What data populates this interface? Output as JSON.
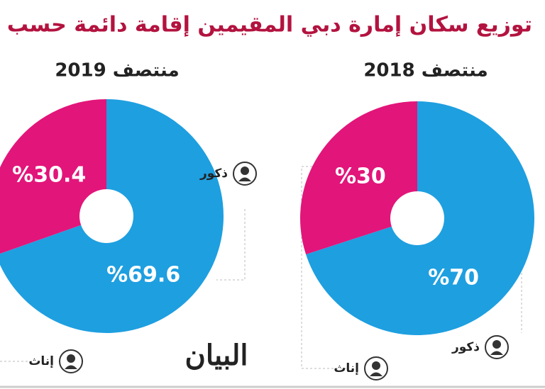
{
  "title": "توزيع سكان إمارة دبي المقيمين إقامة دائمة حسب النوع",
  "brand": "البيان",
  "chart_data": [
    {
      "type": "pie",
      "title": "منتصف 2018",
      "categories": [
        "ذكور",
        "إناث"
      ],
      "values": [
        70,
        30
      ],
      "value_labels": [
        "%70",
        "%30"
      ],
      "colors": [
        "#1e9fe0",
        "#e2157a"
      ]
    },
    {
      "type": "pie",
      "title": "منتصف 2019",
      "categories": [
        "ذكور",
        "إناث"
      ],
      "values": [
        69.6,
        30.4
      ],
      "value_labels": [
        "%69.6",
        "%30.4"
      ],
      "colors": [
        "#1e9fe0",
        "#e2157a"
      ]
    }
  ]
}
